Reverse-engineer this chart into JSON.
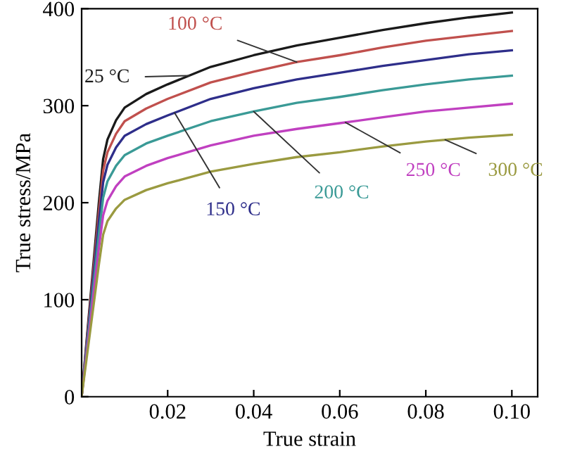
{
  "chart_data": {
    "type": "line",
    "xlabel": "True strain",
    "ylabel": "True stress/MPa",
    "x": [
      0,
      0.004,
      0.005,
      0.006,
      0.008,
      0.01,
      0.015,
      0.02,
      0.03,
      0.04,
      0.05,
      0.06,
      0.07,
      0.08,
      0.09,
      0.1
    ],
    "series": [
      {
        "name": "25 °C",
        "color": "#1a1a1a",
        "values": [
          0,
          200,
          245,
          265,
          285,
          298,
          312,
          322,
          340,
          352,
          362,
          370,
          378,
          385,
          391,
          396
        ]
      },
      {
        "name": "100 °C",
        "color": "#c0504d",
        "values": [
          0,
          190,
          233,
          252,
          271,
          284,
          297,
          307,
          324,
          335,
          345,
          352,
          360,
          367,
          372,
          377
        ]
      },
      {
        "name": "150 °C",
        "color": "#2e2e8a",
        "values": [
          0,
          180,
          221,
          239,
          257,
          269,
          281,
          290,
          307,
          318,
          327,
          334,
          341,
          347,
          353,
          357
        ]
      },
      {
        "name": "200 °C",
        "color": "#3a9a96",
        "values": [
          0,
          167,
          205,
          222,
          238,
          249,
          261,
          269,
          284,
          294,
          303,
          309,
          316,
          322,
          327,
          331
        ]
      },
      {
        "name": "250 °C",
        "color": "#c040c0",
        "values": [
          0,
          153,
          187,
          202,
          217,
          227,
          238,
          246,
          259,
          269,
          276,
          282,
          288,
          294,
          298,
          302
        ]
      },
      {
        "name": "300 °C",
        "color": "#9a9a40",
        "values": [
          0,
          136,
          167,
          181,
          194,
          203,
          213,
          220,
          232,
          240,
          247,
          252,
          258,
          263,
          267,
          270
        ]
      }
    ],
    "xlim": [
      0,
      0.106
    ],
    "ylim": [
      0,
      400
    ],
    "xticks": [
      0.02,
      0.04,
      0.06,
      {
        "value": 0.08,
        "label": "0.08"
      },
      {
        "value": 0.1,
        "label": "0.10"
      }
    ],
    "yticks": [
      0,
      100,
      200,
      300,
      400
    ],
    "grid": false,
    "legend": false,
    "marker": "none",
    "line_style": "solid"
  }
}
